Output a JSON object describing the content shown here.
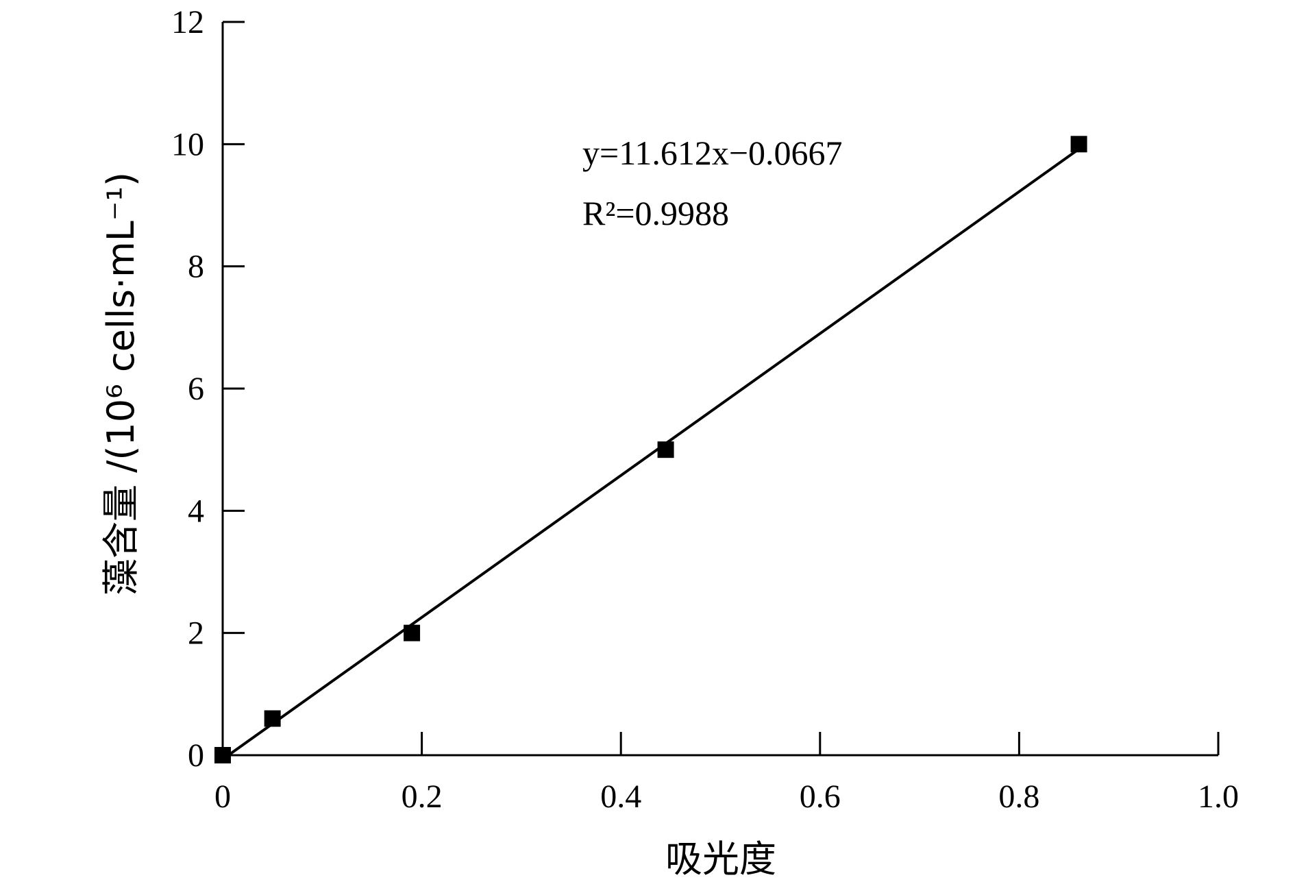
{
  "chart_data": {
    "type": "scatter",
    "xlabel": "吸光度",
    "ylabel": "藻含量 /(10⁶ cells·mL⁻¹)",
    "xlim": [
      0,
      1.0
    ],
    "ylim": [
      0,
      12
    ],
    "x_ticks": [
      "0",
      "0.2",
      "0.4",
      "0.6",
      "0.8",
      "1.0"
    ],
    "y_ticks": [
      "0",
      "2",
      "4",
      "6",
      "8",
      "10",
      "12"
    ],
    "grid": false,
    "series": [
      {
        "x": [
          0.0,
          0.05,
          0.19,
          0.445,
          0.86
        ],
        "y": [
          0.0,
          0.6,
          2.0,
          5.0,
          10.0
        ]
      }
    ],
    "fit": {
      "slope": 11.612,
      "intercept": -0.0667,
      "x_range": [
        0.0,
        0.86
      ]
    },
    "annotations": {
      "equation": "y=11.612x−0.0667",
      "r2": "R²=0.9988"
    }
  }
}
